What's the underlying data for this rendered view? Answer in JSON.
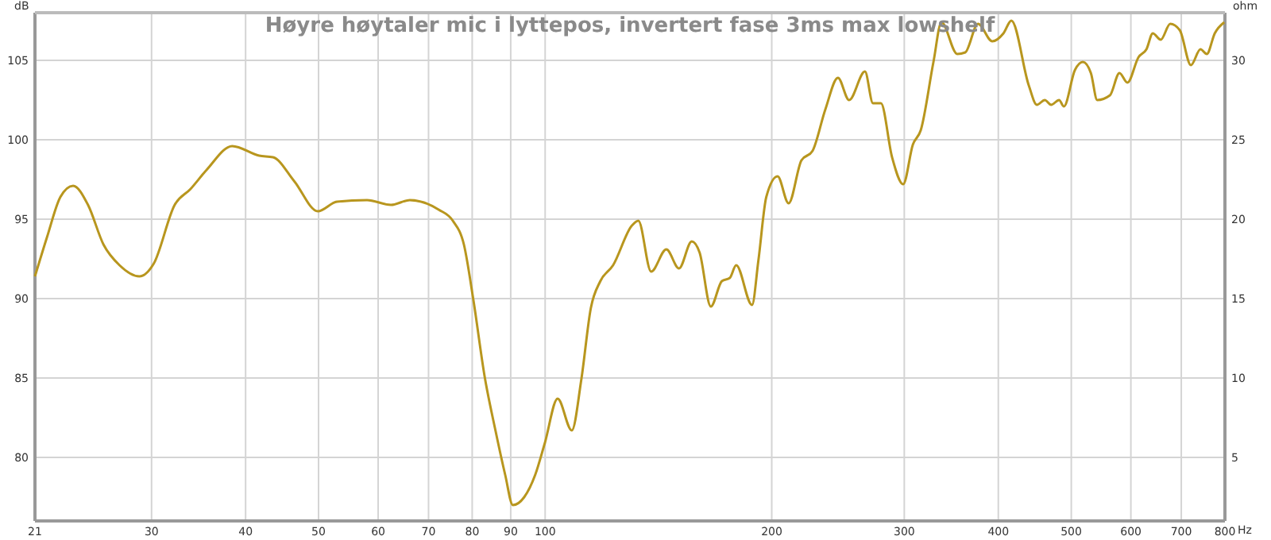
{
  "chart_data": {
    "type": "line",
    "title": "Høyre høytaler mic i lyttepos, invertert fase 3ms max lowshelf",
    "xlabel": "Hz",
    "ylabel": "dB",
    "y2label": "ohm",
    "log": "x",
    "grid": true,
    "marker": "none",
    "line_style": "solid",
    "xlim": [
      21,
      800
    ],
    "xticks": [
      21,
      30,
      40,
      50,
      60,
      70,
      80,
      90,
      100,
      200,
      300,
      400,
      500,
      600,
      700,
      800
    ],
    "ylim": [
      76,
      108
    ],
    "yticks": [
      80,
      85,
      90,
      95,
      100,
      105
    ],
    "y2lim": [
      1,
      33
    ],
    "y2ticks": [
      5,
      10,
      15,
      20,
      25,
      30
    ],
    "series": [
      {
        "color": "#b8961e",
        "x": [
          21,
          21.8,
          22.7,
          23.6,
          24.7,
          25.9,
          27.2,
          28.9,
          30.2,
          32.2,
          33.8,
          35.5,
          38.4,
          41.7,
          43.5,
          46.4,
          49.9,
          52.9,
          58,
          62.4,
          66.1,
          72.2,
          75.4,
          78,
          80.3,
          83.1,
          85.9,
          88.5,
          90.6,
          93.8,
          97,
          99.9,
          103.9,
          108.5,
          111.7,
          115,
          118.4,
          123.1,
          130.4,
          133,
          138.3,
          144.9,
          150.6,
          156.6,
          160.4,
          166,
          171.7,
          175.9,
          179.4,
          188.3,
          192,
          196.7,
          203.6,
          210.6,
          219,
          226.6,
          235.6,
          244.9,
          253.4,
          266,
          272.6,
          279.3,
          289,
          299,
          308,
          315.5,
          328,
          336.1,
          352.8,
          361.5,
          375.9,
          392.7,
          406.3,
          416.3,
          439.2,
          450,
          461.1,
          470.1,
          481.7,
          488.8,
          505.7,
          518.1,
          530.9,
          541.3,
          562.8,
          579.4,
          593.7,
          614.2,
          629.3,
          641.6,
          657.4,
          676.8,
          696.8,
          721,
          742.3,
          756.8,
          775.5,
          798.5
        ],
        "values": [
          91.4,
          93.9,
          96.4,
          97.1,
          95.9,
          93.4,
          92.1,
          91.4,
          92.2,
          95.9,
          96.9,
          98.1,
          99.6,
          99,
          98.9,
          97.4,
          95.5,
          96.1,
          96.2,
          95.9,
          96.2,
          95.6,
          94.9,
          93.4,
          89.9,
          85.1,
          81.7,
          78.9,
          77,
          77.5,
          78.9,
          80.9,
          83.7,
          81.7,
          84.9,
          89.4,
          91.1,
          92.1,
          94.6,
          94.9,
          91.7,
          93.1,
          91.9,
          93.6,
          92.9,
          89.5,
          91.1,
          91.3,
          92.1,
          89.6,
          92.4,
          96.4,
          97.7,
          96,
          98.7,
          99.3,
          101.9,
          103.9,
          102.5,
          104.3,
          102.3,
          102.3,
          98.9,
          97.2,
          99.7,
          100.6,
          104.9,
          107.4,
          105.4,
          105.5,
          107.3,
          106.2,
          106.7,
          107.5,
          103.4,
          102.2,
          102.5,
          102.2,
          102.5,
          102.1,
          104.4,
          104.9,
          104.2,
          102.5,
          102.8,
          104.2,
          103.6,
          105.2,
          105.7,
          106.7,
          106.3,
          107.3,
          106.9,
          104.7,
          105.7,
          105.4,
          106.7,
          107.4
        ]
      }
    ]
  }
}
